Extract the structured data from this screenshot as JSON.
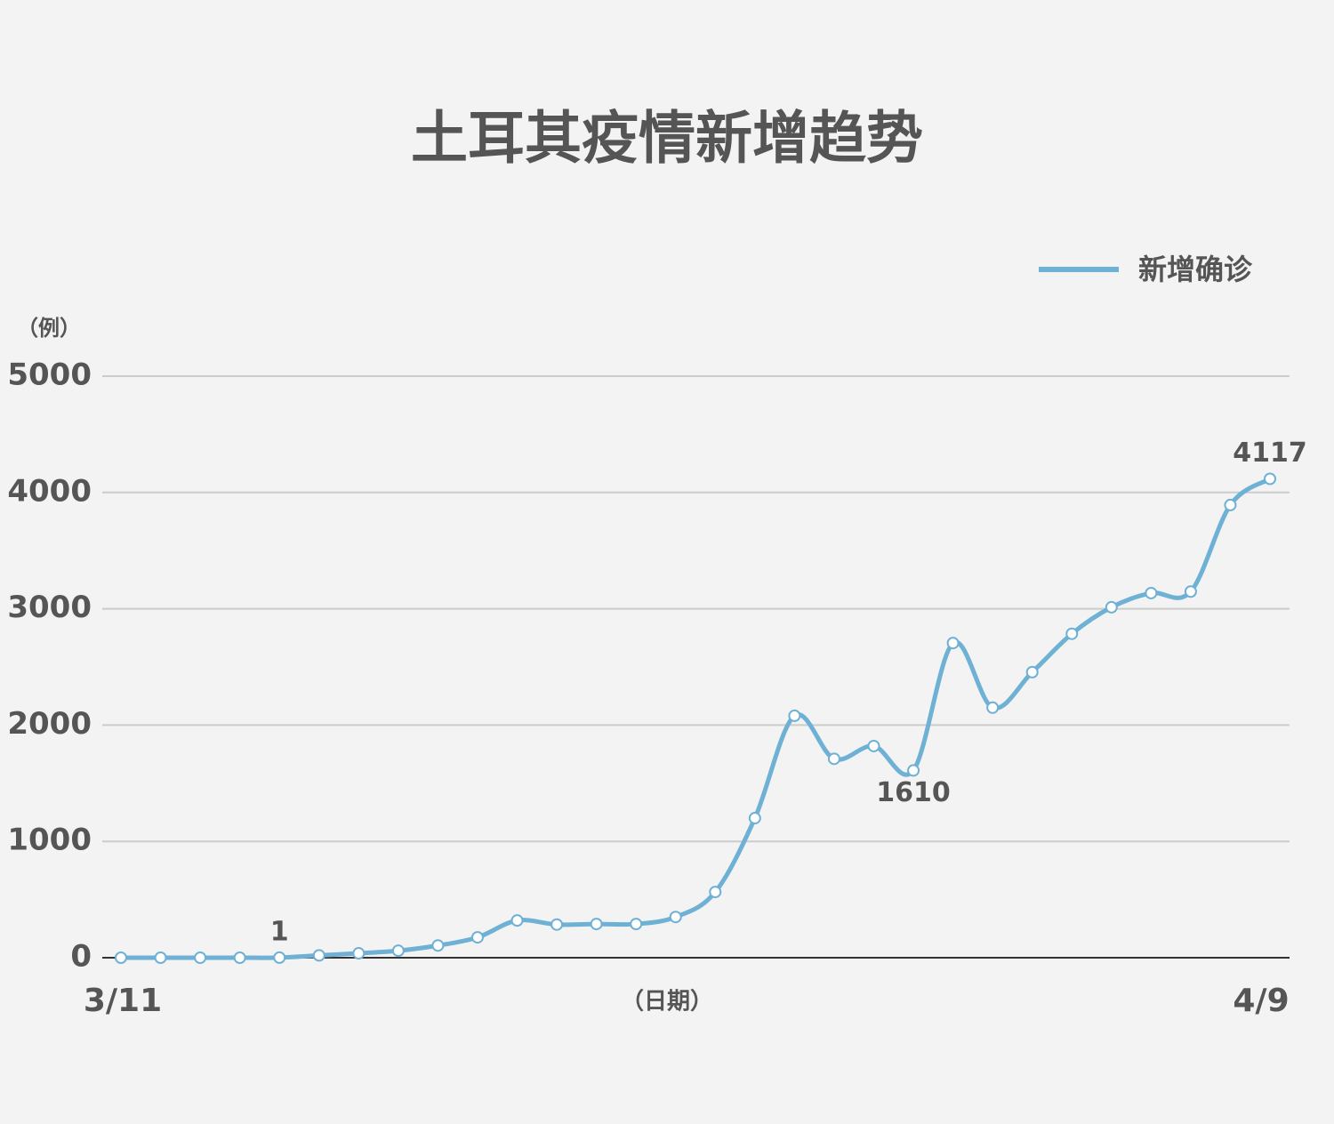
{
  "chart_data": {
    "type": "line",
    "title": "土耳其疫情新增趋势",
    "y_label": "（例）",
    "x_label": "（日期）",
    "categories": [
      "3/11",
      null,
      null,
      null,
      null,
      null,
      null,
      null,
      null,
      null,
      null,
      null,
      null,
      null,
      null,
      null,
      null,
      null,
      null,
      null,
      null,
      null,
      null,
      null,
      null,
      null,
      null,
      null,
      null,
      "4/9"
    ],
    "series": [
      {
        "name": "新增确诊",
        "color": "#6eb1d4",
        "values": [
          0,
          0,
          0,
          0,
          1,
          20,
          38,
          60,
          105,
          175,
          320,
          285,
          290,
          290,
          350,
          565,
          1200,
          2080,
          1710,
          1820,
          1610,
          2705,
          2150,
          2455,
          2785,
          3013,
          3135,
          3148,
          3892,
          4117
        ],
        "value_labels": [
          null,
          null,
          null,
          null,
          "1",
          null,
          null,
          null,
          null,
          null,
          null,
          null,
          null,
          null,
          null,
          null,
          null,
          null,
          null,
          null,
          "1610",
          null,
          null,
          null,
          null,
          null,
          null,
          null,
          null,
          "4117"
        ]
      }
    ],
    "ylim": [
      0,
      5000
    ],
    "yticks": [
      0,
      1000,
      2000,
      3000,
      4000,
      5000
    ],
    "grid": true,
    "legend": "top-right"
  }
}
